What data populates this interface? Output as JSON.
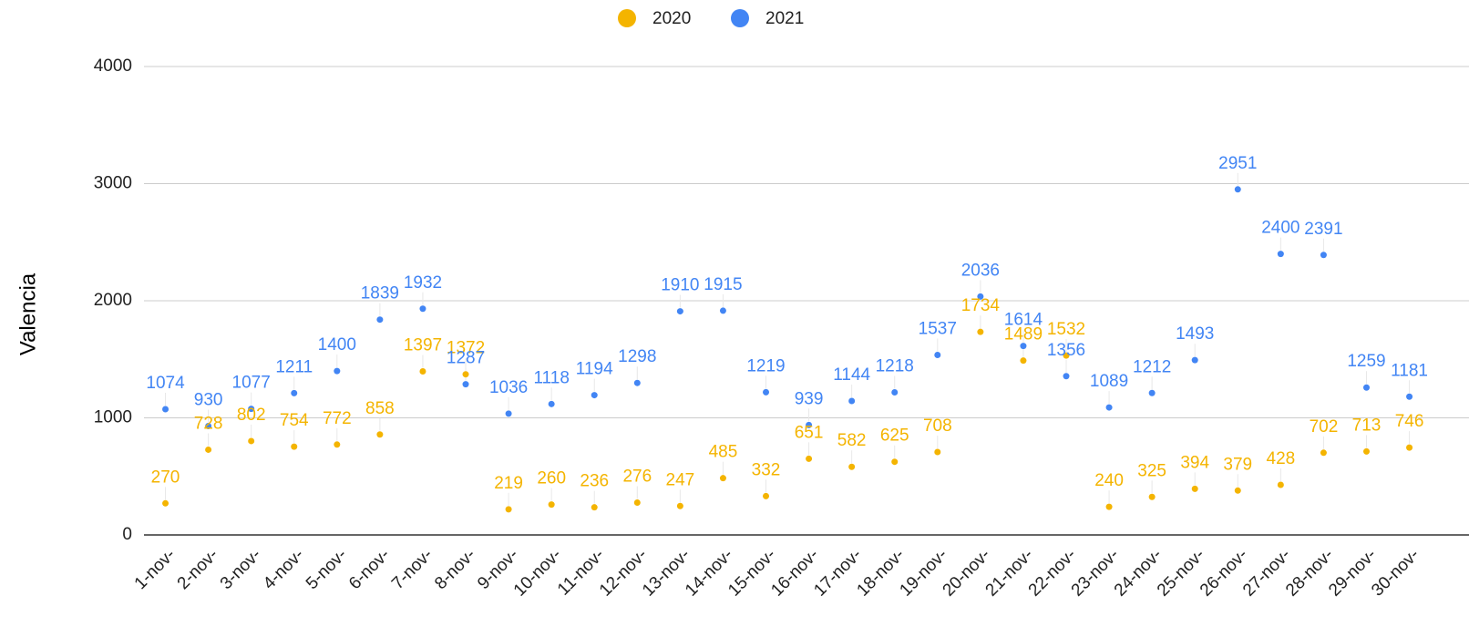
{
  "chart_data": {
    "type": "line",
    "y_label": "Valencia",
    "categories": [
      "1-nov-",
      "2-nov-",
      "3-nov-",
      "4-nov-",
      "5-nov-",
      "6-nov-",
      "7-nov-",
      "8-nov-",
      "9-nov-",
      "10-nov-",
      "11-nov-",
      "12-nov-",
      "13-nov-",
      "14-nov-",
      "15-nov-",
      "16-nov-",
      "17-nov-",
      "18-nov-",
      "19-nov-",
      "20-nov-",
      "21-nov-",
      "22-nov-",
      "23-nov-",
      "24-nov-",
      "25-nov-",
      "26-nov-",
      "27-nov-",
      "28-nov-",
      "29-nov-",
      "30-nov-"
    ],
    "series": [
      {
        "name": "2020",
        "color": "#f4b400",
        "values": [
          270,
          728,
          802,
          754,
          772,
          858,
          1397,
          1372,
          219,
          260,
          236,
          276,
          247,
          485,
          332,
          651,
          582,
          625,
          708,
          1734,
          1489,
          1532,
          240,
          325,
          394,
          379,
          428,
          702,
          713,
          746
        ]
      },
      {
        "name": "2021",
        "color": "#4285f4",
        "values": [
          1074,
          930,
          1077,
          1211,
          1400,
          1839,
          1932,
          1287,
          1036,
          1118,
          1194,
          1298,
          1910,
          1915,
          1219,
          939,
          1144,
          1218,
          1537,
          2036,
          1614,
          1356,
          1089,
          1212,
          1493,
          2951,
          2400,
          2391,
          1259,
          1181
        ]
      }
    ],
    "ylim": [
      0,
      4000
    ],
    "yticks": [
      0,
      1000,
      2000,
      3000,
      4000
    ],
    "grid": true,
    "legend": "top"
  }
}
